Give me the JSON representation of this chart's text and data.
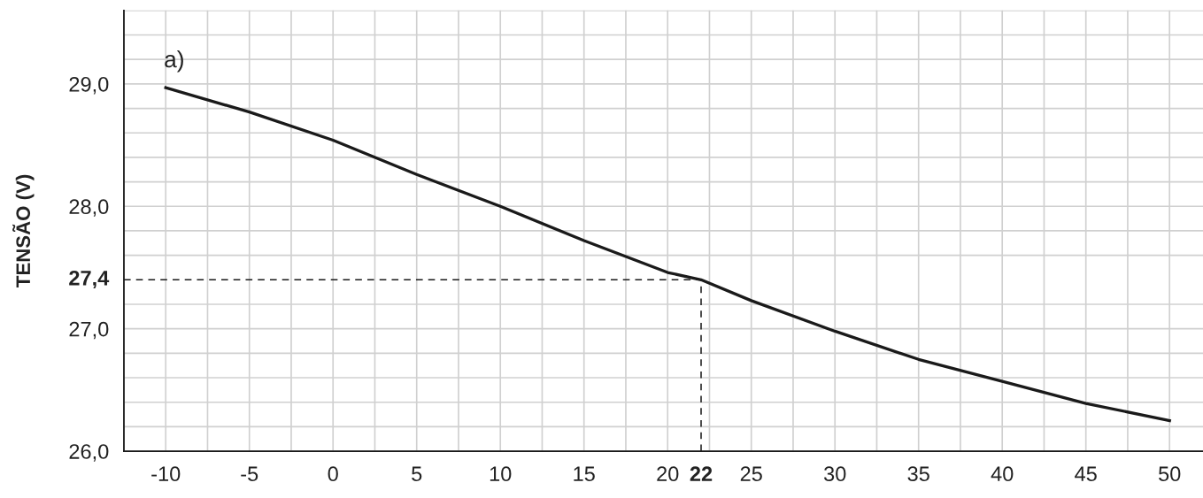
{
  "chart_data": {
    "type": "line",
    "title": "a)",
    "ylabel": "TENSÃO (V)",
    "x": [
      -10,
      -5,
      0,
      5,
      10,
      15,
      20,
      22,
      25,
      30,
      35,
      40,
      45,
      50
    ],
    "series": [
      {
        "color": "#1a1a1a",
        "values": [
          28.97,
          28.77,
          28.54,
          28.26,
          28.0,
          27.72,
          27.46,
          27.4,
          27.23,
          26.98,
          26.75,
          26.57,
          26.39,
          26.25
        ]
      }
    ],
    "xlim": [
      -12.5,
      52
    ],
    "xticks": [
      {
        "value": -12.5,
        "label": null
      },
      -10,
      {
        "value": -7.5,
        "label": null
      },
      -5,
      {
        "value": -2.5,
        "label": null
      },
      0,
      {
        "value": 2.5,
        "label": null
      },
      5,
      {
        "value": 7.5,
        "label": null
      },
      10,
      {
        "value": 12.5,
        "label": null
      },
      15,
      {
        "value": 17.5,
        "label": null
      },
      20,
      {
        "value": 22.5,
        "label": null
      },
      25,
      {
        "value": 27.5,
        "label": null
      },
      30,
      {
        "value": 32.5,
        "label": null
      },
      35,
      {
        "value": 37.5,
        "label": null
      },
      40,
      {
        "value": 42.5,
        "label": null
      },
      45,
      {
        "value": 47.5,
        "label": null
      },
      50
    ],
    "ylim": [
      26.0,
      29.6
    ],
    "yticks": [
      {
        "value": 26.0,
        "label": "26,0"
      },
      {
        "value": 26.2,
        "label": null
      },
      {
        "value": 26.4,
        "label": null
      },
      {
        "value": 26.6,
        "label": null
      },
      {
        "value": 26.8,
        "label": null
      },
      {
        "value": 27.0,
        "label": "27,0"
      },
      {
        "value": 27.2,
        "label": null
      },
      {
        "value": 27.6,
        "label": null
      },
      {
        "value": 27.8,
        "label": null
      },
      {
        "value": 28.0,
        "label": "28,0"
      },
      {
        "value": 28.2,
        "label": null
      },
      {
        "value": 28.4,
        "label": null
      },
      {
        "value": 28.6,
        "label": null
      },
      {
        "value": 28.8,
        "label": null
      },
      {
        "value": 29.0,
        "label": "29,0"
      },
      {
        "value": 29.2,
        "label": null
      },
      {
        "value": 29.4,
        "label": null
      },
      {
        "value": 29.6,
        "label": null
      }
    ],
    "ref_lines": [
      {
        "axis": "y",
        "value": 27.4,
        "label": "27,4",
        "color": "#1a1a1a",
        "line_style": "dashed"
      },
      {
        "axis": "x",
        "value": 22,
        "label": "22",
        "color": "#1a1a1a",
        "line_style": "dashed"
      }
    ],
    "grid": true,
    "marker": "none",
    "line_style": "solid"
  }
}
